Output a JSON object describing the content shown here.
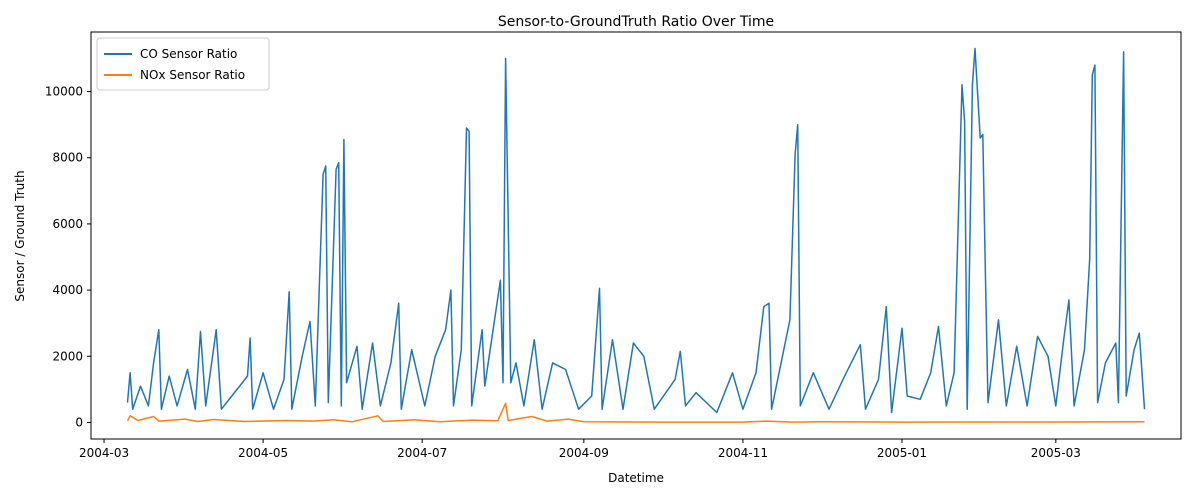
{
  "chart_data": {
    "type": "line",
    "title": "Sensor-to-GroundTruth Ratio Over Time",
    "xlabel": "Datetime",
    "ylabel": "Sensor / Ground Truth",
    "x_ticks": [
      "2004-03",
      "2004-05",
      "2004-07",
      "2004-09",
      "2004-11",
      "2005-01",
      "2005-03"
    ],
    "xlim": [
      "2004-02-25",
      "2005-04-18"
    ],
    "y_ticks": [
      0,
      2000,
      4000,
      6000,
      8000,
      10000
    ],
    "ylim": [
      -500,
      11800
    ],
    "grid": false,
    "legend_position": "top-left",
    "series": [
      {
        "name": "CO Sensor Ratio",
        "color": "#1f77b4",
        "points": [
          [
            "2004-03-10",
            600
          ],
          [
            "2004-03-11",
            1500
          ],
          [
            "2004-03-12",
            400
          ],
          [
            "2004-03-15",
            1100
          ],
          [
            "2004-03-18",
            500
          ],
          [
            "2004-03-20",
            1800
          ],
          [
            "2004-03-22",
            2800
          ],
          [
            "2004-03-23",
            400
          ],
          [
            "2004-03-26",
            1400
          ],
          [
            "2004-03-29",
            500
          ],
          [
            "2004-04-02",
            1600
          ],
          [
            "2004-04-05",
            400
          ],
          [
            "2004-04-07",
            2750
          ],
          [
            "2004-04-09",
            500
          ],
          [
            "2004-04-13",
            2800
          ],
          [
            "2004-04-15",
            400
          ],
          [
            "2004-04-19",
            800
          ],
          [
            "2004-04-25",
            1400
          ],
          [
            "2004-04-26",
            2550
          ],
          [
            "2004-04-27",
            400
          ],
          [
            "2004-05-01",
            1500
          ],
          [
            "2004-05-05",
            400
          ],
          [
            "2004-05-09",
            1300
          ],
          [
            "2004-05-11",
            3950
          ],
          [
            "2004-05-12",
            400
          ],
          [
            "2004-05-16",
            2000
          ],
          [
            "2004-05-19",
            3050
          ],
          [
            "2004-05-21",
            500
          ],
          [
            "2004-05-24",
            7500
          ],
          [
            "2004-05-25",
            7750
          ],
          [
            "2004-05-26",
            600
          ],
          [
            "2004-05-29",
            7650
          ],
          [
            "2004-05-30",
            7850
          ],
          [
            "2004-05-31",
            500
          ],
          [
            "2004-06-01",
            8550
          ],
          [
            "2004-06-02",
            1200
          ],
          [
            "2004-06-06",
            2300
          ],
          [
            "2004-06-08",
            400
          ],
          [
            "2004-06-12",
            2400
          ],
          [
            "2004-06-15",
            500
          ],
          [
            "2004-06-19",
            1800
          ],
          [
            "2004-06-22",
            3600
          ],
          [
            "2004-06-23",
            400
          ],
          [
            "2004-06-27",
            2200
          ],
          [
            "2004-07-02",
            500
          ],
          [
            "2004-07-06",
            2000
          ],
          [
            "2004-07-10",
            2800
          ],
          [
            "2004-07-12",
            4000
          ],
          [
            "2004-07-13",
            500
          ],
          [
            "2004-07-16",
            2200
          ],
          [
            "2004-07-18",
            8900
          ],
          [
            "2004-07-19",
            8800
          ],
          [
            "2004-07-20",
            500
          ],
          [
            "2004-07-24",
            2800
          ],
          [
            "2004-07-25",
            1100
          ],
          [
            "2004-07-31",
            4300
          ],
          [
            "2004-08-01",
            1200
          ],
          [
            "2004-08-02",
            11000
          ],
          [
            "2004-08-04",
            1200
          ],
          [
            "2004-08-06",
            1800
          ],
          [
            "2004-08-09",
            500
          ],
          [
            "2004-08-13",
            2500
          ],
          [
            "2004-08-16",
            400
          ],
          [
            "2004-08-20",
            1800
          ],
          [
            "2004-08-25",
            1600
          ],
          [
            "2004-08-30",
            400
          ],
          [
            "2004-09-04",
            800
          ],
          [
            "2004-09-07",
            4050
          ],
          [
            "2004-09-08",
            400
          ],
          [
            "2004-09-12",
            2500
          ],
          [
            "2004-09-16",
            400
          ],
          [
            "2004-09-20",
            2400
          ],
          [
            "2004-09-24",
            2000
          ],
          [
            "2004-09-28",
            400
          ],
          [
            "2004-10-06",
            1300
          ],
          [
            "2004-10-08",
            2150
          ],
          [
            "2004-10-10",
            500
          ],
          [
            "2004-10-14",
            900
          ],
          [
            "2004-10-22",
            300
          ],
          [
            "2004-10-28",
            1500
          ],
          [
            "2004-11-01",
            400
          ],
          [
            "2004-11-06",
            1500
          ],
          [
            "2004-11-09",
            3500
          ],
          [
            "2004-11-11",
            3600
          ],
          [
            "2004-11-12",
            400
          ],
          [
            "2004-11-19",
            3100
          ],
          [
            "2004-11-21",
            8100
          ],
          [
            "2004-11-22",
            9000
          ],
          [
            "2004-11-23",
            500
          ],
          [
            "2004-11-28",
            1500
          ],
          [
            "2004-12-04",
            400
          ],
          [
            "2004-12-10",
            1400
          ],
          [
            "2004-12-16",
            2350
          ],
          [
            "2004-12-18",
            400
          ],
          [
            "2004-12-23",
            1300
          ],
          [
            "2004-12-26",
            3500
          ],
          [
            "2004-12-28",
            300
          ],
          [
            "2005-01-01",
            2850
          ],
          [
            "2005-01-03",
            800
          ],
          [
            "2005-01-08",
            700
          ],
          [
            "2005-01-12",
            1500
          ],
          [
            "2005-01-15",
            2900
          ],
          [
            "2005-01-18",
            500
          ],
          [
            "2005-01-21",
            1500
          ],
          [
            "2005-01-24",
            10200
          ],
          [
            "2005-01-25",
            9100
          ],
          [
            "2005-01-26",
            400
          ],
          [
            "2005-01-28",
            10200
          ],
          [
            "2005-01-29",
            11300
          ],
          [
            "2005-01-31",
            8600
          ],
          [
            "2005-02-01",
            8700
          ],
          [
            "2005-02-02",
            4500
          ],
          [
            "2005-02-03",
            600
          ],
          [
            "2005-02-07",
            3100
          ],
          [
            "2005-02-10",
            500
          ],
          [
            "2005-02-14",
            2300
          ],
          [
            "2005-02-18",
            500
          ],
          [
            "2005-02-22",
            2600
          ],
          [
            "2005-02-26",
            2000
          ],
          [
            "2005-03-01",
            500
          ],
          [
            "2005-03-04",
            2500
          ],
          [
            "2005-03-06",
            3700
          ],
          [
            "2005-03-08",
            500
          ],
          [
            "2005-03-12",
            2200
          ],
          [
            "2005-03-14",
            4950
          ],
          [
            "2005-03-15",
            10500
          ],
          [
            "2005-03-16",
            10800
          ],
          [
            "2005-03-17",
            600
          ],
          [
            "2005-03-20",
            1800
          ],
          [
            "2005-03-24",
            2400
          ],
          [
            "2005-03-25",
            600
          ],
          [
            "2005-03-27",
            11200
          ],
          [
            "2005-03-28",
            800
          ],
          [
            "2005-03-31",
            2200
          ],
          [
            "2005-04-02",
            2700
          ],
          [
            "2005-04-04",
            400
          ]
        ]
      },
      {
        "name": "NOx Sensor Ratio",
        "color": "#ff7f0e",
        "points": [
          [
            "2004-03-10",
            50
          ],
          [
            "2004-03-11",
            200
          ],
          [
            "2004-03-14",
            60
          ],
          [
            "2004-03-20",
            180
          ],
          [
            "2004-03-22",
            40
          ],
          [
            "2004-04-01",
            100
          ],
          [
            "2004-04-06",
            30
          ],
          [
            "2004-04-12",
            90
          ],
          [
            "2004-04-24",
            30
          ],
          [
            "2004-05-10",
            60
          ],
          [
            "2004-05-20",
            40
          ],
          [
            "2004-05-28",
            80
          ],
          [
            "2004-06-04",
            20
          ],
          [
            "2004-06-14",
            200
          ],
          [
            "2004-06-16",
            30
          ],
          [
            "2004-06-28",
            80
          ],
          [
            "2004-07-08",
            20
          ],
          [
            "2004-07-20",
            70
          ],
          [
            "2004-07-30",
            50
          ],
          [
            "2004-08-02",
            580
          ],
          [
            "2004-08-03",
            60
          ],
          [
            "2004-08-12",
            180
          ],
          [
            "2004-08-18",
            40
          ],
          [
            "2004-08-26",
            100
          ],
          [
            "2004-09-01",
            20
          ],
          [
            "2004-10-01",
            10
          ],
          [
            "2004-11-01",
            10
          ],
          [
            "2004-11-10",
            40
          ],
          [
            "2004-11-20",
            10
          ],
          [
            "2004-12-01",
            20
          ],
          [
            "2005-01-01",
            10
          ],
          [
            "2005-02-01",
            15
          ],
          [
            "2005-03-01",
            15
          ],
          [
            "2005-04-04",
            20
          ]
        ]
      }
    ]
  }
}
